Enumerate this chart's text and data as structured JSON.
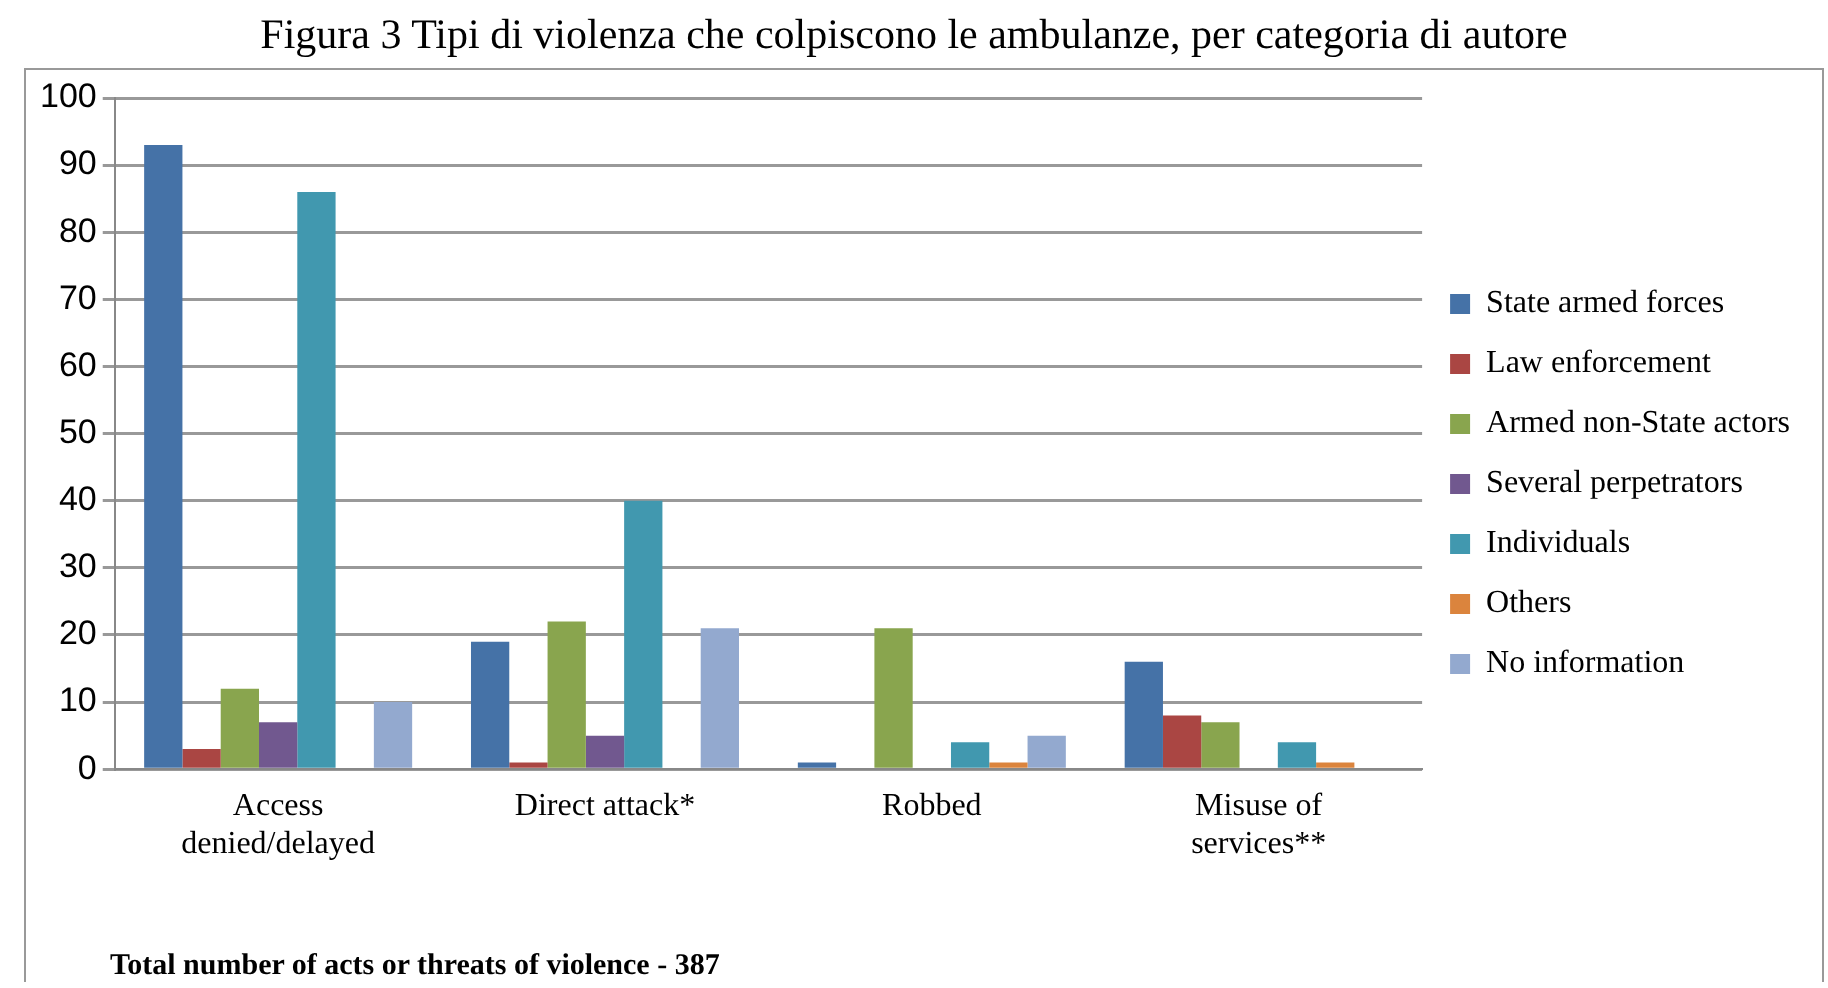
{
  "chart_data": {
    "type": "bar",
    "title": "Figura 3 Tipi di violenza che colpiscono le ambulanze, per categoria di autore",
    "categories": [
      "Access\ndenied/delayed",
      "Direct attack*",
      "Robbed",
      "Misuse of\nservices**"
    ],
    "series": [
      {
        "name": "State armed forces",
        "color": "#4572a7",
        "values": [
          93,
          19,
          1,
          16
        ]
      },
      {
        "name": "Law enforcement",
        "color": "#aa4643",
        "values": [
          3,
          1,
          0,
          8
        ]
      },
      {
        "name": "Armed non-State actors",
        "color": "#89a54e",
        "values": [
          12,
          22,
          21,
          7
        ]
      },
      {
        "name": "Several perpetrators",
        "color": "#71588f",
        "values": [
          7,
          5,
          0,
          0
        ]
      },
      {
        "name": "Individuals",
        "color": "#4198af",
        "values": [
          86,
          40,
          4,
          4
        ]
      },
      {
        "name": "Others",
        "color": "#db843d",
        "values": [
          0,
          0,
          1,
          1
        ]
      },
      {
        "name": "No information",
        "color": "#93a9cf",
        "values": [
          10,
          21,
          5,
          0
        ]
      }
    ],
    "ylim": [
      0,
      100
    ],
    "yticks": [
      0,
      10,
      20,
      30,
      40,
      50,
      60,
      70,
      80,
      90,
      100
    ],
    "grid": "y",
    "legend": "right",
    "annotations": [
      "Total number of acts or threats of violence - 387"
    ]
  }
}
